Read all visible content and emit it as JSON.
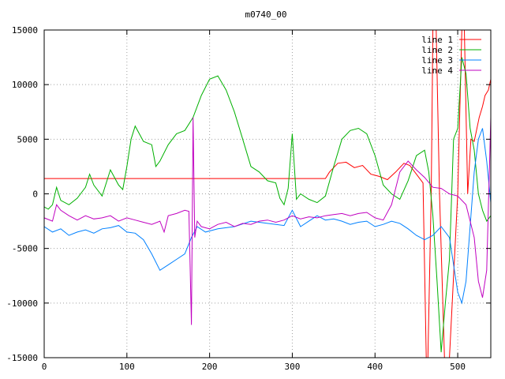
{
  "chart_data": {
    "type": "line",
    "title": "m0740_00",
    "xlabel": "",
    "ylabel": "",
    "xlim": [
      0,
      540
    ],
    "ylim": [
      -15000,
      15000
    ],
    "xticks": [
      0,
      100,
      200,
      300,
      400,
      500
    ],
    "yticks": [
      -15000,
      -10000,
      -5000,
      0,
      5000,
      10000,
      15000
    ],
    "grid": true,
    "legend_position": "top-right",
    "series": [
      {
        "name": "line 1",
        "color": "#ff0000",
        "points": [
          [
            0,
            1400
          ],
          [
            340,
            1400
          ],
          [
            345,
            2000
          ],
          [
            355,
            2800
          ],
          [
            365,
            2900
          ],
          [
            375,
            2400
          ],
          [
            385,
            2600
          ],
          [
            395,
            1800
          ],
          [
            405,
            1600
          ],
          [
            415,
            1300
          ],
          [
            425,
            2000
          ],
          [
            435,
            2800
          ],
          [
            442,
            2600
          ],
          [
            450,
            1800
          ],
          [
            458,
            1000
          ],
          [
            462,
            -15000
          ],
          [
            464,
            -15000
          ],
          [
            468,
            0
          ],
          [
            470,
            15000
          ],
          [
            474,
            15000
          ],
          [
            478,
            0
          ],
          [
            484,
            -15000
          ],
          [
            490,
            -15000
          ],
          [
            500,
            0
          ],
          [
            505,
            15000
          ],
          [
            508,
            15000
          ],
          [
            512,
            0
          ],
          [
            516,
            5000
          ],
          [
            520,
            4800
          ],
          [
            526,
            7000
          ],
          [
            530,
            8000
          ],
          [
            533,
            9000
          ],
          [
            537,
            9500
          ],
          [
            540,
            10500
          ]
        ]
      },
      {
        "name": "line 2",
        "color": "#00b000",
        "points": [
          [
            0,
            -1200
          ],
          [
            5,
            -1400
          ],
          [
            10,
            -1000
          ],
          [
            15,
            600
          ],
          [
            20,
            -600
          ],
          [
            30,
            -1000
          ],
          [
            40,
            -400
          ],
          [
            50,
            600
          ],
          [
            55,
            1800
          ],
          [
            60,
            800
          ],
          [
            70,
            -200
          ],
          [
            80,
            2200
          ],
          [
            90,
            800
          ],
          [
            95,
            400
          ],
          [
            100,
            2500
          ],
          [
            105,
            5000
          ],
          [
            110,
            6200
          ],
          [
            120,
            4800
          ],
          [
            130,
            4500
          ],
          [
            135,
            2500
          ],
          [
            140,
            3000
          ],
          [
            150,
            4500
          ],
          [
            160,
            5500
          ],
          [
            170,
            5800
          ],
          [
            180,
            7000
          ],
          [
            190,
            9000
          ],
          [
            200,
            10500
          ],
          [
            210,
            10800
          ],
          [
            220,
            9500
          ],
          [
            230,
            7500
          ],
          [
            240,
            5000
          ],
          [
            250,
            2500
          ],
          [
            260,
            2000
          ],
          [
            270,
            1200
          ],
          [
            280,
            1000
          ],
          [
            285,
            -400
          ],
          [
            290,
            -1000
          ],
          [
            295,
            500
          ],
          [
            300,
            5500
          ],
          [
            305,
            -500
          ],
          [
            310,
            0
          ],
          [
            320,
            -500
          ],
          [
            330,
            -800
          ],
          [
            340,
            -200
          ],
          [
            350,
            2500
          ],
          [
            360,
            5000
          ],
          [
            370,
            5800
          ],
          [
            380,
            6000
          ],
          [
            390,
            5500
          ],
          [
            400,
            3500
          ],
          [
            410,
            800
          ],
          [
            420,
            0
          ],
          [
            430,
            -500
          ],
          [
            440,
            1200
          ],
          [
            450,
            3500
          ],
          [
            460,
            4000
          ],
          [
            465,
            2000
          ],
          [
            470,
            -2000
          ],
          [
            475,
            -8000
          ],
          [
            480,
            -14500
          ],
          [
            485,
            -10000
          ],
          [
            490,
            -6000
          ],
          [
            495,
            5000
          ],
          [
            500,
            6000
          ],
          [
            505,
            12500
          ],
          [
            510,
            11000
          ],
          [
            515,
            6000
          ],
          [
            520,
            4000
          ],
          [
            525,
            0
          ],
          [
            530,
            -1500
          ],
          [
            535,
            -2500
          ],
          [
            540,
            -2000
          ]
        ]
      },
      {
        "name": "line 3",
        "color": "#0080ff",
        "points": [
          [
            0,
            -3000
          ],
          [
            10,
            -3500
          ],
          [
            20,
            -3200
          ],
          [
            30,
            -3800
          ],
          [
            40,
            -3500
          ],
          [
            50,
            -3300
          ],
          [
            60,
            -3600
          ],
          [
            70,
            -3200
          ],
          [
            80,
            -3100
          ],
          [
            90,
            -2900
          ],
          [
            100,
            -3500
          ],
          [
            110,
            -3600
          ],
          [
            120,
            -4200
          ],
          [
            130,
            -5500
          ],
          [
            140,
            -7000
          ],
          [
            150,
            -6500
          ],
          [
            160,
            -6000
          ],
          [
            170,
            -5500
          ],
          [
            178,
            -4000
          ],
          [
            185,
            -3000
          ],
          [
            195,
            -3500
          ],
          [
            210,
            -3200
          ],
          [
            230,
            -3000
          ],
          [
            250,
            -2500
          ],
          [
            270,
            -2700
          ],
          [
            290,
            -2900
          ],
          [
            300,
            -1500
          ],
          [
            310,
            -3000
          ],
          [
            320,
            -2500
          ],
          [
            330,
            -2000
          ],
          [
            340,
            -2400
          ],
          [
            350,
            -2300
          ],
          [
            360,
            -2500
          ],
          [
            370,
            -2800
          ],
          [
            380,
            -2600
          ],
          [
            390,
            -2500
          ],
          [
            400,
            -3000
          ],
          [
            410,
            -2800
          ],
          [
            420,
            -2500
          ],
          [
            430,
            -2700
          ],
          [
            440,
            -3200
          ],
          [
            450,
            -3800
          ],
          [
            460,
            -4200
          ],
          [
            470,
            -3800
          ],
          [
            480,
            -3000
          ],
          [
            490,
            -4000
          ],
          [
            500,
            -9000
          ],
          [
            505,
            -10000
          ],
          [
            510,
            -8000
          ],
          [
            515,
            -3000
          ],
          [
            520,
            2000
          ],
          [
            525,
            5000
          ],
          [
            530,
            6000
          ],
          [
            535,
            3000
          ],
          [
            540,
            -800
          ]
        ]
      },
      {
        "name": "line 4",
        "color": "#c000c0",
        "points": [
          [
            0,
            -2200
          ],
          [
            10,
            -2500
          ],
          [
            15,
            -1000
          ],
          [
            20,
            -1500
          ],
          [
            30,
            -2000
          ],
          [
            40,
            -2400
          ],
          [
            50,
            -2000
          ],
          [
            60,
            -2300
          ],
          [
            70,
            -2200
          ],
          [
            80,
            -2000
          ],
          [
            90,
            -2500
          ],
          [
            100,
            -2200
          ],
          [
            110,
            -2400
          ],
          [
            120,
            -2600
          ],
          [
            130,
            -2800
          ],
          [
            140,
            -2500
          ],
          [
            145,
            -3500
          ],
          [
            150,
            -2000
          ],
          [
            160,
            -1800
          ],
          [
            170,
            -1500
          ],
          [
            175,
            -1600
          ],
          [
            178,
            -12000
          ],
          [
            180,
            7000
          ],
          [
            182,
            -4000
          ],
          [
            185,
            -2500
          ],
          [
            190,
            -3000
          ],
          [
            200,
            -3200
          ],
          [
            210,
            -2800
          ],
          [
            220,
            -2600
          ],
          [
            230,
            -3000
          ],
          [
            240,
            -2700
          ],
          [
            250,
            -2800
          ],
          [
            260,
            -2500
          ],
          [
            270,
            -2400
          ],
          [
            280,
            -2600
          ],
          [
            290,
            -2400
          ],
          [
            300,
            -2000
          ],
          [
            310,
            -2300
          ],
          [
            320,
            -2100
          ],
          [
            330,
            -2200
          ],
          [
            340,
            -2000
          ],
          [
            350,
            -1900
          ],
          [
            360,
            -1800
          ],
          [
            370,
            -2000
          ],
          [
            380,
            -1800
          ],
          [
            390,
            -1700
          ],
          [
            400,
            -2200
          ],
          [
            410,
            -2400
          ],
          [
            420,
            -1000
          ],
          [
            430,
            2000
          ],
          [
            440,
            3000
          ],
          [
            450,
            2200
          ],
          [
            460,
            1500
          ],
          [
            470,
            600
          ],
          [
            480,
            500
          ],
          [
            490,
            0
          ],
          [
            500,
            -200
          ],
          [
            510,
            -1000
          ],
          [
            520,
            -4000
          ],
          [
            525,
            -8000
          ],
          [
            530,
            -9500
          ],
          [
            535,
            -7000
          ],
          [
            540,
            7000
          ]
        ]
      }
    ]
  }
}
